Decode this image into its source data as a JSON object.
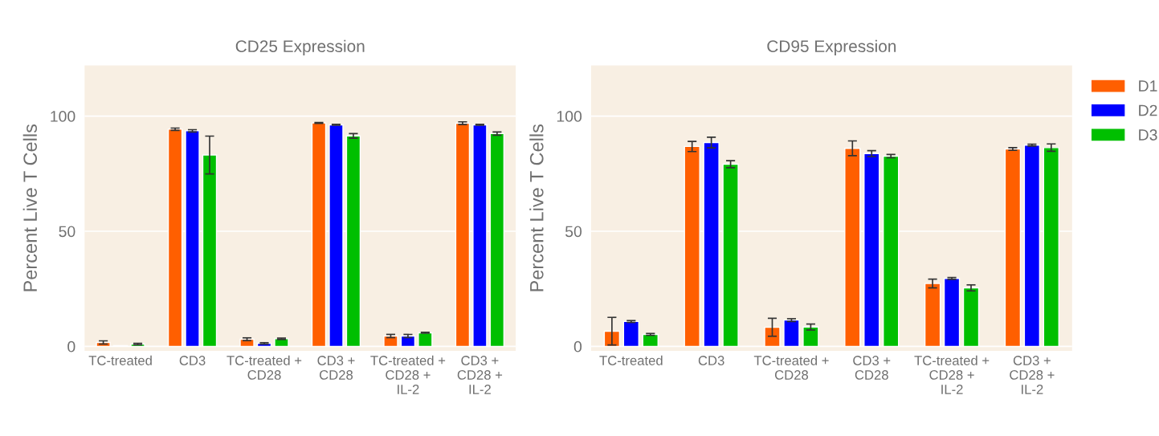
{
  "chart_data": [
    {
      "type": "bar",
      "title": "CD25 Expression",
      "ylabel": "Percent Live T Cells",
      "categories": [
        "TC-treated",
        "CD3",
        "TC-treated +\nCD28",
        "CD3 +\nCD28",
        "TC-treated +\nCD28 +\nIL-2",
        "CD3 +\nCD28 +\nIL-2"
      ],
      "series": [
        {
          "color": "#ff5f00",
          "values": [
            1.7,
            94.3,
            3.1,
            97.0,
            4.5,
            96.9
          ],
          "errors": [
            0.7,
            0.5,
            0.6,
            0.2,
            0.7,
            0.6
          ]
        },
        {
          "color": "#0000ff",
          "values": [
            0.3,
            93.6,
            1.3,
            96.2,
            4.5,
            96.2
          ],
          "errors": [
            null,
            0.5,
            0.3,
            0.2,
            0.7,
            0.2
          ]
        },
        {
          "color": "#00bf00",
          "values": [
            1.0,
            83.1,
            3.3,
            91.4,
            5.9,
            92.4
          ],
          "errors": [
            0.3,
            8.2,
            0.3,
            1.0,
            0.2,
            0.7
          ]
        }
      ],
      "ylim": [
        -2,
        122
      ],
      "yticks": [
        0,
        50,
        100
      ],
      "grid": "y",
      "legend": false
    },
    {
      "type": "bar",
      "title": "CD95 Expression",
      "ylabel": "Percent Live T Cells",
      "categories": [
        "TC-treated",
        "CD3",
        "TC-treated +\nCD28",
        "CD3 +\nCD28",
        "TC-treated +\nCD28 +\nIL-2",
        "CD3 +\nCD28 +\nIL-2"
      ],
      "series": [
        {
          "name": "D1",
          "color": "#ff5f00",
          "values": [
            6.6,
            86.8,
            8.3,
            86.0,
            27.3,
            85.7
          ],
          "errors": [
            6.0,
            2.2,
            3.9,
            3.2,
            1.9,
            0.6
          ]
        },
        {
          "name": "D2",
          "color": "#0000ff",
          "values": [
            10.8,
            88.5,
            11.4,
            83.7,
            29.5,
            87.4
          ],
          "errors": [
            0.4,
            2.3,
            0.6,
            1.3,
            0.4,
            0.4
          ]
        },
        {
          "name": "D3",
          "color": "#00bf00",
          "values": [
            5.2,
            79.1,
            8.4,
            82.6,
            25.4,
            86.3
          ],
          "errors": [
            0.4,
            1.5,
            1.3,
            0.7,
            1.3,
            1.6
          ]
        }
      ],
      "ylim": [
        -2,
        122
      ],
      "yticks": [
        0,
        50,
        100
      ],
      "grid": "y",
      "legend": "right"
    }
  ]
}
